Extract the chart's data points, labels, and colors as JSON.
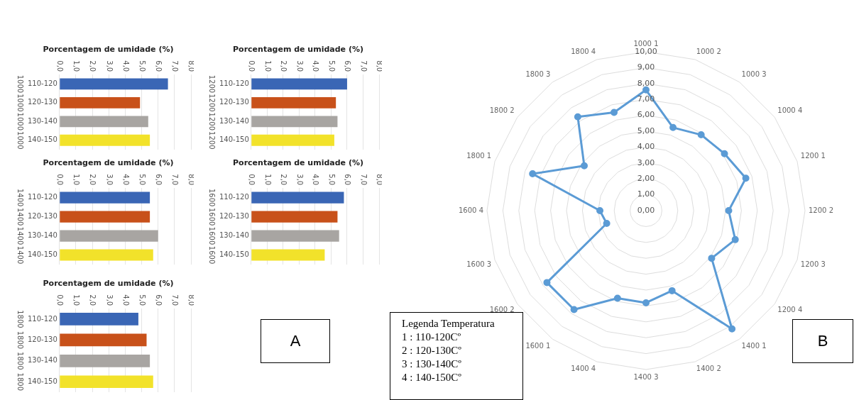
{
  "chart_data": [
    {
      "type": "bar",
      "orientation": "horizontal",
      "title": "Porcentagem de umidade (%)",
      "categories": [
        "110-120",
        "120-130",
        "130-140",
        "140-150"
      ],
      "values": [
        6.6,
        4.9,
        5.4,
        5.5
      ],
      "colors": [
        "#3a66b5",
        "#c8511a",
        "#a8a5a2",
        "#f2e22a"
      ],
      "xlim": [
        0,
        8
      ],
      "xticks": [
        {
          "value": 0,
          "label": "0,0"
        },
        {
          "value": 1,
          "label": "1,0"
        },
        {
          "value": 2,
          "label": "2,0"
        },
        {
          "value": 3,
          "label": "3,0"
        },
        {
          "value": 4,
          "label": "4,0"
        },
        {
          "value": 5,
          "label": "5,0"
        },
        {
          "value": 6,
          "label": "6,0"
        },
        {
          "value": 7,
          "label": "7,0"
        },
        {
          "value": 8,
          "label": "8,0"
        }
      ],
      "grid": "x",
      "annotations": [
        "1000",
        "1000",
        "1000",
        "1000"
      ]
    },
    {
      "type": "bar",
      "orientation": "horizontal",
      "title": "Porcentagem de umidade (%)",
      "categories": [
        "110-120",
        "120-130",
        "130-140",
        "140-150"
      ],
      "values": [
        6.0,
        5.3,
        5.4,
        5.2
      ],
      "colors": [
        "#3a66b5",
        "#c8511a",
        "#a8a5a2",
        "#f2e22a"
      ],
      "xlim": [
        0,
        8
      ],
      "xticks": [
        {
          "value": 0,
          "label": "0,0"
        },
        {
          "value": 1,
          "label": "1,0"
        },
        {
          "value": 2,
          "label": "2,0"
        },
        {
          "value": 3,
          "label": "3,0"
        },
        {
          "value": 4,
          "label": "4,0"
        },
        {
          "value": 5,
          "label": "5,0"
        },
        {
          "value": 6,
          "label": "6,0"
        },
        {
          "value": 7,
          "label": "7,0"
        },
        {
          "value": 8,
          "label": "8,0"
        }
      ],
      "grid": "x",
      "annotations": [
        "1200",
        "1200",
        "1200",
        "1200"
      ]
    },
    {
      "type": "bar",
      "orientation": "horizontal",
      "title": "Porcentagem de umidade (%)",
      "categories": [
        "110-120",
        "120-130",
        "130-140",
        "140-150"
      ],
      "values": [
        5.5,
        5.5,
        6.0,
        5.7
      ],
      "colors": [
        "#3a66b5",
        "#c8511a",
        "#a8a5a2",
        "#f2e22a"
      ],
      "xlim": [
        0,
        8
      ],
      "xticks": [
        {
          "value": 0,
          "label": "0,0"
        },
        {
          "value": 1,
          "label": "1,0"
        },
        {
          "value": 2,
          "label": "2,0"
        },
        {
          "value": 3,
          "label": "3,0"
        },
        {
          "value": 4,
          "label": "4,0"
        },
        {
          "value": 5,
          "label": "5,0"
        },
        {
          "value": 6,
          "label": "6,0"
        },
        {
          "value": 7,
          "label": "7,0"
        },
        {
          "value": 8,
          "label": "8,0"
        }
      ],
      "grid": "x",
      "annotations": [
        "1400",
        "1400",
        "1400",
        "1400"
      ]
    },
    {
      "type": "bar",
      "orientation": "horizontal",
      "title": "Porcentagem de umidade (%)",
      "categories": [
        "110-120",
        "120-130",
        "130-140",
        "140-150"
      ],
      "values": [
        5.8,
        5.4,
        5.5,
        4.6
      ],
      "colors": [
        "#3a66b5",
        "#c8511a",
        "#a8a5a2",
        "#f2e22a"
      ],
      "xlim": [
        0,
        8
      ],
      "xticks": [
        {
          "value": 0,
          "label": "0,0"
        },
        {
          "value": 1,
          "label": "1,0"
        },
        {
          "value": 2,
          "label": "2,0"
        },
        {
          "value": 3,
          "label": "3,0"
        },
        {
          "value": 4,
          "label": "4,0"
        },
        {
          "value": 5,
          "label": "5,0"
        },
        {
          "value": 6,
          "label": "6,0"
        },
        {
          "value": 7,
          "label": "7,0"
        },
        {
          "value": 8,
          "label": "8,0"
        }
      ],
      "grid": "x",
      "annotations": [
        "1600",
        "1600",
        "1600",
        "1600"
      ]
    },
    {
      "type": "bar",
      "orientation": "horizontal",
      "title": "Porcentagem de umidade (%)",
      "categories": [
        "110-120",
        "120-130",
        "130-140",
        "140-150"
      ],
      "values": [
        4.8,
        5.3,
        5.5,
        5.7
      ],
      "colors": [
        "#3a66b5",
        "#c8511a",
        "#a8a5a2",
        "#f2e22a"
      ],
      "xlim": [
        0,
        8
      ],
      "xticks": [
        {
          "value": 0,
          "label": "0,0"
        },
        {
          "value": 1,
          "label": "1,0"
        },
        {
          "value": 2,
          "label": "2,0"
        },
        {
          "value": 3,
          "label": "3,0"
        },
        {
          "value": 4,
          "label": "4,0"
        },
        {
          "value": 5,
          "label": "5,0"
        },
        {
          "value": 6,
          "label": "6,0"
        },
        {
          "value": 7,
          "label": "7,0"
        },
        {
          "value": 8,
          "label": "8,0"
        }
      ],
      "grid": "x",
      "annotations": [
        "1800",
        "1800",
        "1800",
        "1800"
      ]
    },
    {
      "type": "radar",
      "categories": [
        "1000 1",
        "1000 2",
        "1000 3",
        "1000 4",
        "1200 1",
        "1200 2",
        "1200 3",
        "1200 4",
        "1400 1",
        "1400 2",
        "1400 3",
        "1400 4",
        "1600 1",
        "1600 2",
        "1600 3",
        "1600 4",
        "1800 1",
        "1800 2",
        "1800 3",
        "1800 4"
      ],
      "series": [
        {
          "color": "#5b9bd5",
          "values": [
            7.6,
            5.5,
            5.9,
            6.1,
            6.6,
            5.2,
            5.9,
            5.1,
            9.2,
            5.3,
            5.8,
            5.8,
            7.7,
            7.7,
            2.6,
            2.9,
            7.5,
            4.8,
            7.3,
            6.5
          ]
        }
      ],
      "ylim": [
        0,
        10
      ],
      "yticks": [
        {
          "value": 0,
          "label": "0,00"
        },
        {
          "value": 1,
          "label": "1,00"
        },
        {
          "value": 2,
          "label": "2,00"
        },
        {
          "value": 3,
          "label": "3,00"
        },
        {
          "value": 4,
          "label": "4,00"
        },
        {
          "value": 5,
          "label": "5,00"
        },
        {
          "value": 6,
          "label": "6,00"
        },
        {
          "value": 7,
          "label": "7,00"
        },
        {
          "value": 8,
          "label": "8,00"
        },
        {
          "value": 9,
          "label": "9,00"
        },
        {
          "value": 10,
          "label": "10,00"
        }
      ],
      "grid": true,
      "marker": "circle"
    },
    {
      "type": "other",
      "title": "Legenda Temperatura",
      "annotations": [
        "1 : 110-120Cº",
        "2 : 120-130Cº",
        "3 : 130-140Cº",
        "4 : 140-150Cº"
      ]
    },
    {
      "type": "other",
      "title": "A"
    },
    {
      "type": "other",
      "title": "B"
    }
  ]
}
